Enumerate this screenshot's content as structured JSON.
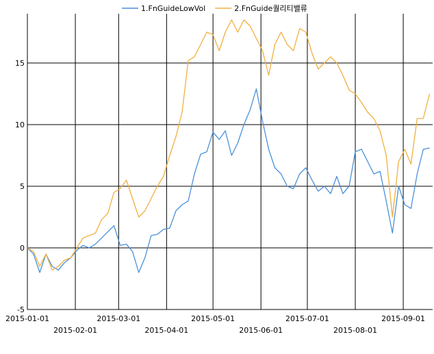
{
  "chart_data": {
    "type": "line",
    "title": "",
    "xlabel": "",
    "ylabel": "",
    "ylim": [
      -5,
      19
    ],
    "yticks": [
      -5,
      0,
      5,
      10,
      15
    ],
    "legend_position": "top-center",
    "grid": true,
    "x_tick_labels": [
      "2015-01-01",
      "2015-02-01",
      "2015-03-01",
      "2015-04-01",
      "2015-05-01",
      "2015-06-01",
      "2015-07-01",
      "2015-08-01",
      "2015-09-01"
    ],
    "x": [
      "2015-01-01",
      "2015-01-05",
      "2015-01-09",
      "2015-01-13",
      "2015-01-17",
      "2015-01-21",
      "2015-01-25",
      "2015-01-29",
      "2015-02-02",
      "2015-02-06",
      "2015-02-10",
      "2015-02-14",
      "2015-02-18",
      "2015-02-22",
      "2015-02-26",
      "2015-03-02",
      "2015-03-06",
      "2015-03-10",
      "2015-03-14",
      "2015-03-18",
      "2015-03-22",
      "2015-03-26",
      "2015-03-30",
      "2015-04-03",
      "2015-04-07",
      "2015-04-11",
      "2015-04-15",
      "2015-04-19",
      "2015-04-23",
      "2015-04-27",
      "2015-05-01",
      "2015-05-05",
      "2015-05-09",
      "2015-05-13",
      "2015-05-17",
      "2015-05-21",
      "2015-05-25",
      "2015-05-29",
      "2015-06-02",
      "2015-06-06",
      "2015-06-10",
      "2015-06-14",
      "2015-06-18",
      "2015-06-22",
      "2015-06-26",
      "2015-06-30",
      "2015-07-04",
      "2015-07-08",
      "2015-07-12",
      "2015-07-16",
      "2015-07-20",
      "2015-07-24",
      "2015-07-28",
      "2015-08-01",
      "2015-08-05",
      "2015-08-09",
      "2015-08-13",
      "2015-08-17",
      "2015-08-21",
      "2015-08-25",
      "2015-08-29",
      "2015-09-02",
      "2015-09-06",
      "2015-09-10",
      "2015-09-14",
      "2015-09-18"
    ],
    "series": [
      {
        "name": "1.FnGuideLowVol",
        "color": "#4a90d9",
        "values": [
          0.0,
          -0.5,
          -2.0,
          -0.5,
          -1.5,
          -1.8,
          -1.2,
          -0.8,
          -0.2,
          0.2,
          0.0,
          0.3,
          0.8,
          1.3,
          1.8,
          0.2,
          0.3,
          -0.3,
          -2.0,
          -0.8,
          1.0,
          1.1,
          1.5,
          1.6,
          3.0,
          3.5,
          3.8,
          6.0,
          7.6,
          7.8,
          9.4,
          8.8,
          9.5,
          7.5,
          8.5,
          10.0,
          11.2,
          12.9,
          10.3,
          8.0,
          6.5,
          6.0,
          5.0,
          4.8,
          6.0,
          6.5,
          5.5,
          4.6,
          5.0,
          4.4,
          5.8,
          4.4,
          5.0,
          7.8,
          8.0,
          7.0,
          6.0,
          6.2,
          3.8,
          1.2,
          5.0,
          3.5,
          3.2,
          6.0,
          8.0,
          8.1
        ]
      },
      {
        "name": "2.FnGuide퀄리티밸류",
        "color": "#f0b040",
        "values": [
          0.0,
          -0.3,
          -1.5,
          -0.5,
          -1.8,
          -1.5,
          -1.0,
          -0.8,
          0.0,
          0.8,
          1.0,
          1.2,
          2.3,
          2.8,
          4.5,
          4.8,
          5.5,
          4.0,
          2.5,
          3.0,
          4.0,
          5.0,
          5.8,
          7.5,
          9.0,
          11.0,
          15.2,
          15.5,
          16.5,
          17.5,
          17.3,
          16.0,
          17.5,
          18.5,
          17.5,
          18.5,
          18.0,
          17.0,
          16.0,
          14.0,
          16.5,
          17.5,
          16.5,
          16.0,
          17.8,
          17.5,
          15.8,
          14.5,
          15.0,
          15.5,
          15.0,
          14.0,
          12.8,
          12.5,
          11.8,
          11.0,
          10.5,
          9.5,
          7.5,
          2.5,
          7.0,
          8.0,
          6.8,
          10.5,
          10.5,
          12.5
        ]
      }
    ]
  }
}
